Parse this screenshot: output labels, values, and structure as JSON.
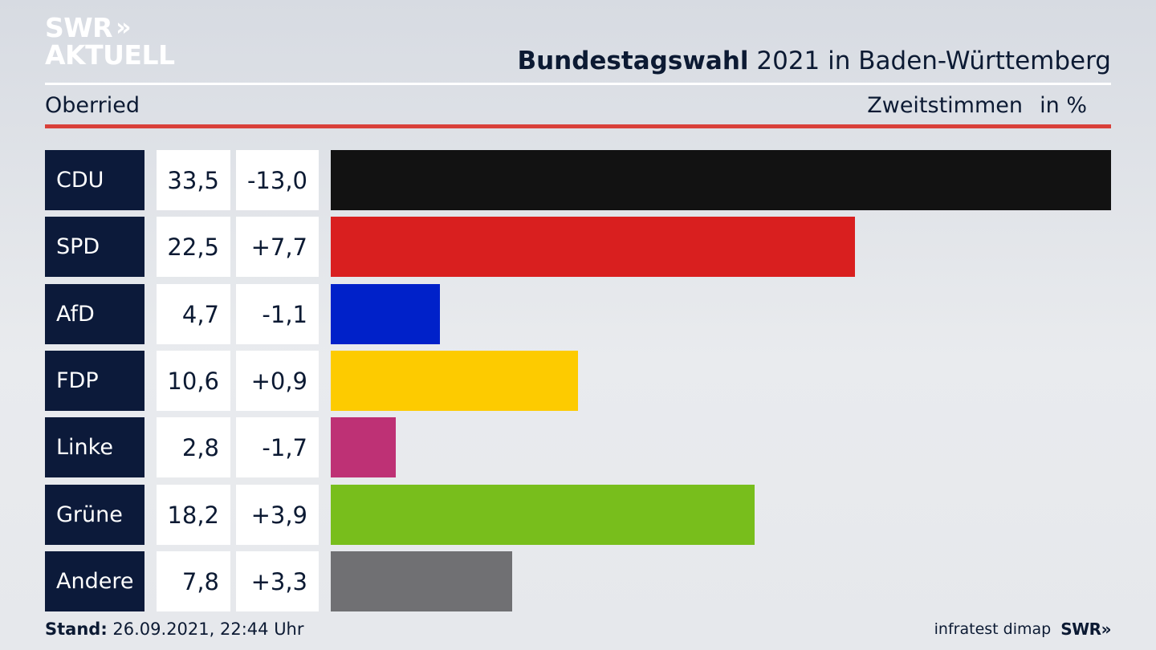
{
  "brand": {
    "logo_line1": "SWR",
    "logo_chevrons": "»",
    "logo_line2": "AKTUELL",
    "logo_color": "#ffffff"
  },
  "header": {
    "title_bold": "Bundestagswahl",
    "title_rest": "2021 in Baden-Württemberg",
    "region": "Oberried",
    "vote_type": "Zweitstimmen",
    "unit": "in %"
  },
  "chart_data": {
    "type": "bar",
    "orientation": "horizontal",
    "title": "Bundestagswahl 2021 in Baden-Württemberg",
    "subtitle": "Oberried",
    "xlabel": "",
    "ylabel": "",
    "unit": "in %",
    "categories": [
      "CDU",
      "SPD",
      "AfD",
      "FDP",
      "Linke",
      "Grüne",
      "Andere"
    ],
    "values": [
      33.5,
      22.5,
      4.7,
      10.6,
      2.8,
      18.2,
      7.8
    ],
    "values_label": [
      "33,5",
      "22,5",
      "4,7",
      "10,6",
      "2,8",
      "18,2",
      "7,8"
    ],
    "diff_label": [
      "-13,0",
      "+7,7",
      "-1,1",
      "+0,9",
      "-1,7",
      "+3,9",
      "+3,3"
    ],
    "colors": [
      "#121212",
      "#d91f1f",
      "#0021c9",
      "#fdcb00",
      "#be3175",
      "#78be1c",
      "#707073"
    ],
    "xlim": [
      0,
      33.5
    ],
    "grid": false,
    "legend": "none"
  },
  "footer": {
    "stand_label": "Stand:",
    "stand_value": "26.09.2021, 22:44 Uhr",
    "source": "infratest dimap",
    "swr_small": "SWR»"
  }
}
